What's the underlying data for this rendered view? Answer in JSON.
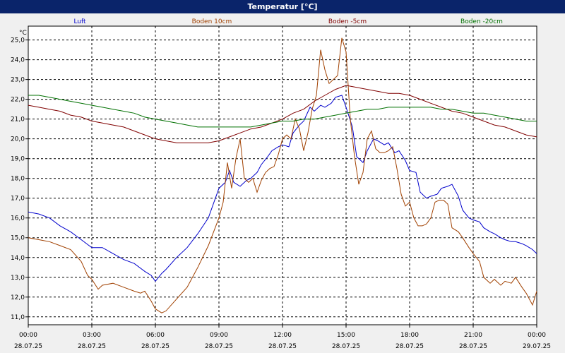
{
  "window": {
    "title": "Temperatur [°C]"
  },
  "chart_data": {
    "type": "line",
    "title": "Temperatur [°C]",
    "ylabel": "°C",
    "xlabel": "",
    "ylim": [
      10.6,
      25.7
    ],
    "xlim": [
      0,
      24
    ],
    "grid": true,
    "legend_position": "top",
    "yticks": [
      11.0,
      12.0,
      13.0,
      14.0,
      15.0,
      16.0,
      17.0,
      18.0,
      19.0,
      20.0,
      21.0,
      22.0,
      23.0,
      24.0,
      25.0
    ],
    "ytick_labels": [
      "11,0",
      "12,0",
      "13,0",
      "14,0",
      "15,0",
      "16,0",
      "17,0",
      "18,0",
      "19,0",
      "20,0",
      "21,0",
      "22,0",
      "23,0",
      "24,0",
      "25,0"
    ],
    "xticks": [
      {
        "x": 0,
        "time": "00:00",
        "date": "28.07.25"
      },
      {
        "x": 3,
        "time": "03:00",
        "date": "28.07.25"
      },
      {
        "x": 6,
        "time": "06:00",
        "date": "28.07.25"
      },
      {
        "x": 9,
        "time": "09:00",
        "date": "28.07.25"
      },
      {
        "x": 12,
        "time": "12:00",
        "date": "28.07.25"
      },
      {
        "x": 15,
        "time": "15:00",
        "date": "28.07.25"
      },
      {
        "x": 18,
        "time": "18:00",
        "date": "28.07.25"
      },
      {
        "x": 21,
        "time": "21:00",
        "date": "28.07.25"
      },
      {
        "x": 24,
        "time": "00:00",
        "date": "29.07.25"
      }
    ],
    "series": [
      {
        "name": "Luft",
        "color": "#0000cc",
        "x": [
          0,
          0.5,
          1,
          1.5,
          2,
          2.5,
          3,
          3.5,
          4,
          4.5,
          5,
          5.5,
          5.8,
          6,
          6.3,
          6.5,
          7,
          7.5,
          8,
          8.5,
          9,
          9.3,
          9.5,
          9.7,
          10,
          10.3,
          10.5,
          10.8,
          11,
          11.3,
          11.5,
          11.8,
          12,
          12.3,
          12.5,
          12.8,
          13,
          13.3,
          13.5,
          13.8,
          14,
          14.3,
          14.5,
          14.8,
          15,
          15.3,
          15.5,
          15.8,
          16,
          16.3,
          16.5,
          16.8,
          17,
          17.3,
          17.5,
          17.8,
          18,
          18.3,
          18.5,
          18.8,
          19,
          19.3,
          19.5,
          19.8,
          20,
          20.3,
          20.5,
          20.8,
          21,
          21.3,
          21.5,
          21.8,
          22,
          22.3,
          22.5,
          22.8,
          23,
          23.3,
          23.5,
          23.8,
          24
        ],
        "y": [
          16.3,
          16.2,
          16.0,
          15.6,
          15.3,
          14.9,
          14.5,
          14.5,
          14.2,
          13.9,
          13.7,
          13.3,
          13.1,
          12.8,
          13.2,
          13.4,
          14.0,
          14.5,
          15.2,
          16.0,
          17.5,
          17.8,
          18.4,
          17.8,
          17.6,
          17.9,
          18.0,
          18.3,
          18.7,
          19.1,
          19.4,
          19.6,
          19.7,
          19.6,
          20.3,
          20.7,
          20.9,
          21.6,
          21.4,
          21.7,
          21.6,
          21.8,
          22.1,
          22.2,
          21.6,
          20.6,
          19.1,
          18.8,
          19.4,
          20.0,
          19.9,
          19.7,
          19.8,
          19.3,
          19.4,
          18.9,
          18.4,
          18.3,
          17.3,
          17.0,
          17.1,
          17.2,
          17.5,
          17.6,
          17.7,
          17.1,
          16.4,
          16.0,
          15.9,
          15.8,
          15.5,
          15.3,
          15.2,
          15.0,
          14.9,
          14.8,
          14.8,
          14.7,
          14.6,
          14.4,
          14.2
        ]
      },
      {
        "name": "Boden 10cm",
        "color": "#a04000",
        "x": [
          0,
          0.5,
          1,
          1.5,
          2,
          2.5,
          2.8,
          3,
          3.3,
          3.5,
          4,
          4.5,
          5,
          5.3,
          5.5,
          5.8,
          6,
          6.3,
          6.5,
          7,
          7.5,
          8,
          8.5,
          9,
          9.2,
          9.4,
          9.6,
          9.8,
          10,
          10.2,
          10.4,
          10.6,
          10.8,
          11,
          11.2,
          11.4,
          11.6,
          11.8,
          12,
          12.2,
          12.4,
          12.6,
          12.8,
          13,
          13.2,
          13.4,
          13.6,
          13.8,
          14,
          14.2,
          14.4,
          14.6,
          14.8,
          15,
          15.2,
          15.4,
          15.6,
          15.8,
          16,
          16.2,
          16.4,
          16.6,
          16.8,
          17,
          17.2,
          17.4,
          17.6,
          17.8,
          18,
          18.2,
          18.4,
          18.6,
          18.8,
          19,
          19.2,
          19.4,
          19.6,
          19.8,
          20,
          20.3,
          20.5,
          20.8,
          21,
          21.3,
          21.5,
          21.8,
          22,
          22.3,
          22.5,
          22.8,
          23,
          23.3,
          23.5,
          23.8,
          24
        ],
        "y": [
          15.0,
          14.9,
          14.8,
          14.6,
          14.4,
          13.8,
          13.1,
          12.9,
          12.4,
          12.6,
          12.7,
          12.5,
          12.3,
          12.2,
          12.3,
          11.8,
          11.4,
          11.2,
          11.3,
          11.9,
          12.5,
          13.5,
          14.6,
          16.0,
          16.8,
          18.8,
          17.5,
          19.0,
          20.0,
          18.0,
          17.8,
          18.0,
          17.3,
          17.9,
          18.3,
          18.5,
          18.6,
          19.2,
          20.0,
          20.2,
          20.0,
          21.0,
          20.5,
          19.4,
          20.3,
          21.5,
          22.2,
          24.5,
          23.5,
          22.8,
          23.0,
          23.2,
          25.1,
          24.4,
          21.0,
          19.1,
          17.7,
          18.3,
          20.0,
          20.4,
          19.5,
          19.3,
          19.3,
          19.4,
          19.6,
          18.5,
          17.2,
          16.6,
          16.8,
          16.0,
          15.6,
          15.6,
          15.7,
          16.0,
          16.8,
          16.9,
          16.9,
          16.7,
          15.5,
          15.3,
          15.0,
          14.5,
          14.2,
          13.8,
          13.0,
          12.7,
          12.9,
          12.6,
          12.8,
          12.7,
          13.0,
          12.5,
          12.2,
          11.6,
          12.3
        ]
      },
      {
        "name": "Boden -5cm",
        "color": "#800000",
        "x": [
          0,
          0.5,
          1,
          1.5,
          2,
          2.5,
          3,
          3.5,
          4,
          4.5,
          5,
          5.5,
          6,
          6.5,
          7,
          7.5,
          8,
          8.5,
          9,
          9.5,
          10,
          10.5,
          11,
          11.5,
          12,
          12.5,
          13,
          13.5,
          14,
          14.5,
          15,
          15.5,
          16,
          16.5,
          17,
          17.5,
          18,
          18.5,
          19,
          19.5,
          20,
          20.5,
          21,
          21.5,
          22,
          22.5,
          23,
          23.5,
          24
        ],
        "y": [
          21.7,
          21.6,
          21.5,
          21.4,
          21.2,
          21.1,
          20.9,
          20.8,
          20.7,
          20.6,
          20.4,
          20.2,
          20.0,
          19.9,
          19.8,
          19.8,
          19.8,
          19.8,
          19.9,
          20.1,
          20.3,
          20.5,
          20.6,
          20.8,
          21.0,
          21.3,
          21.5,
          21.9,
          22.2,
          22.5,
          22.7,
          22.6,
          22.5,
          22.4,
          22.3,
          22.3,
          22.2,
          22.0,
          21.8,
          21.6,
          21.4,
          21.3,
          21.1,
          20.9,
          20.7,
          20.6,
          20.4,
          20.2,
          20.1
        ]
      },
      {
        "name": "Boden -20cm",
        "color": "#007000",
        "x": [
          0,
          0.5,
          1,
          1.5,
          2,
          2.5,
          3,
          3.5,
          4,
          4.5,
          5,
          5.5,
          6,
          6.5,
          7,
          7.5,
          8,
          8.5,
          9,
          9.5,
          10,
          10.5,
          11,
          11.5,
          12,
          12.5,
          13,
          13.5,
          14,
          14.5,
          15,
          15.5,
          16,
          16.5,
          17,
          17.5,
          18,
          18.5,
          19,
          19.5,
          20,
          20.5,
          21,
          21.5,
          22,
          22.5,
          23,
          23.5,
          24
        ],
        "y": [
          22.2,
          22.2,
          22.1,
          22.0,
          21.9,
          21.8,
          21.7,
          21.6,
          21.5,
          21.4,
          21.3,
          21.1,
          21.0,
          20.9,
          20.8,
          20.7,
          20.6,
          20.6,
          20.6,
          20.6,
          20.6,
          20.6,
          20.7,
          20.8,
          20.9,
          20.9,
          21.0,
          21.0,
          21.1,
          21.2,
          21.3,
          21.4,
          21.5,
          21.5,
          21.6,
          21.6,
          21.6,
          21.6,
          21.6,
          21.5,
          21.5,
          21.4,
          21.3,
          21.3,
          21.2,
          21.1,
          21.0,
          20.9,
          20.9
        ]
      }
    ]
  }
}
